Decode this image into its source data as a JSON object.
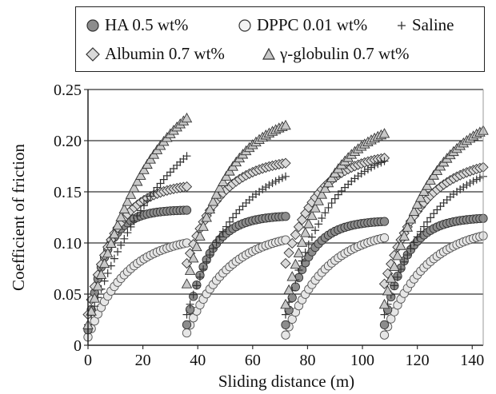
{
  "chart_data": {
    "type": "scatter",
    "title": "",
    "xlabel": "Sliding distance (m)",
    "ylabel": "Coefficient of friction",
    "xlim": [
      0,
      144
    ],
    "ylim": [
      0,
      0.25
    ],
    "xticks": [
      "0",
      "20",
      "40",
      "60",
      "80",
      "100",
      "120",
      "140"
    ],
    "yticks": [
      "0",
      "0.05",
      "0.10",
      "0.15",
      "0.20",
      "0.25"
    ],
    "grid": "horizontal",
    "legend_position": "top",
    "series": [
      {
        "name": "HA 0.5 wt%",
        "marker": "circle",
        "color": "#8c8c8c",
        "segments": [
          {
            "start": 0,
            "end": 36,
            "y0": 0.015,
            "y1": 0.132,
            "k": 6.5
          },
          {
            "start": 36,
            "end": 72,
            "y0": 0.02,
            "y1": 0.126,
            "k": 8
          },
          {
            "start": 72,
            "end": 108,
            "y0": 0.02,
            "y1": 0.121,
            "k": 8
          },
          {
            "start": 108,
            "end": 144,
            "y0": 0.02,
            "y1": 0.124,
            "k": 8
          }
        ]
      },
      {
        "name": "DPPC 0.01 wt%",
        "marker": "open-circle",
        "color": "#e6e6e6",
        "segments": [
          {
            "start": 0,
            "end": 36,
            "y0": 0.008,
            "y1": 0.1,
            "k": 14
          },
          {
            "start": 36,
            "end": 72,
            "y0": 0.012,
            "y1": 0.103,
            "k": 15
          },
          {
            "start": 72,
            "end": 108,
            "y0": 0.01,
            "y1": 0.105,
            "k": 15
          },
          {
            "start": 108,
            "end": 144,
            "y0": 0.01,
            "y1": 0.107,
            "k": 15
          }
        ]
      },
      {
        "name": "Saline",
        "marker": "plus",
        "color": "#333333",
        "segments": [
          {
            "start": 0,
            "end": 36,
            "y0": 0.02,
            "y1": 0.185,
            "k": 30
          },
          {
            "start": 36,
            "end": 72,
            "y0": 0.03,
            "y1": 0.165,
            "k": 18
          },
          {
            "start": 72,
            "end": 108,
            "y0": 0.03,
            "y1": 0.18,
            "k": 16
          },
          {
            "start": 108,
            "end": 144,
            "y0": 0.03,
            "y1": 0.165,
            "k": 18
          }
        ]
      },
      {
        "name": "Albumin 0.7 wt%",
        "marker": "diamond",
        "color": "#d9d9d9",
        "segments": [
          {
            "start": 0,
            "end": 36,
            "y0": 0.03,
            "y1": 0.155,
            "k": 10
          },
          {
            "start": 36,
            "end": 72,
            "y0": 0.08,
            "y1": 0.178,
            "k": 12
          },
          {
            "start": 72,
            "end": 108,
            "y0": 0.08,
            "y1": 0.183,
            "k": 12
          },
          {
            "start": 108,
            "end": 144,
            "y0": 0.06,
            "y1": 0.174,
            "k": 14
          }
        ]
      },
      {
        "name": "γ-globulin 0.7 wt%",
        "marker": "triangle",
        "color": "#c8c8c8",
        "segments": [
          {
            "start": 0,
            "end": 36,
            "y0": 0.02,
            "y1": 0.222,
            "k": 22
          },
          {
            "start": 36,
            "end": 72,
            "y0": 0.06,
            "y1": 0.215,
            "k": 15
          },
          {
            "start": 72,
            "end": 108,
            "y0": 0.04,
            "y1": 0.207,
            "k": 15
          },
          {
            "start": 108,
            "end": 144,
            "y0": 0.04,
            "y1": 0.21,
            "k": 17
          }
        ]
      }
    ]
  }
}
